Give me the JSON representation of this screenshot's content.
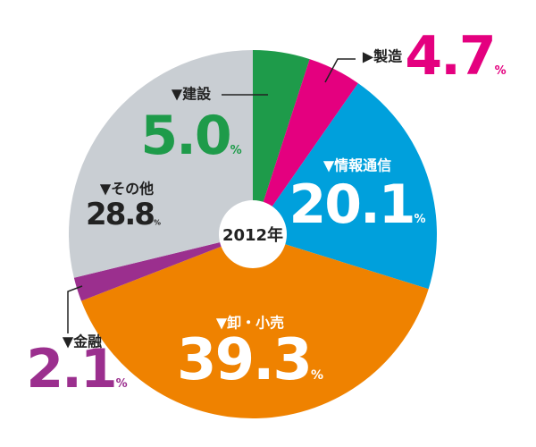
{
  "chart_data": {
    "type": "pie",
    "center_label": "2012年",
    "categories": [
      "▼建設",
      "▶製造",
      "▼情報通信",
      "▼卸・小売",
      "▼金融",
      "▼その他"
    ],
    "values": [
      5.0,
      4.7,
      20.1,
      39.3,
      2.1,
      28.8
    ],
    "value_labels": [
      "5.0",
      "4.7",
      "20.1",
      "39.3",
      "2.1",
      "28.8"
    ],
    "value_unit": "%",
    "colors": [
      "#1e9b4a",
      "#e4007f",
      "#00a0dc",
      "#ef8200",
      "#9b2f8e",
      "#c9ced3"
    ]
  }
}
